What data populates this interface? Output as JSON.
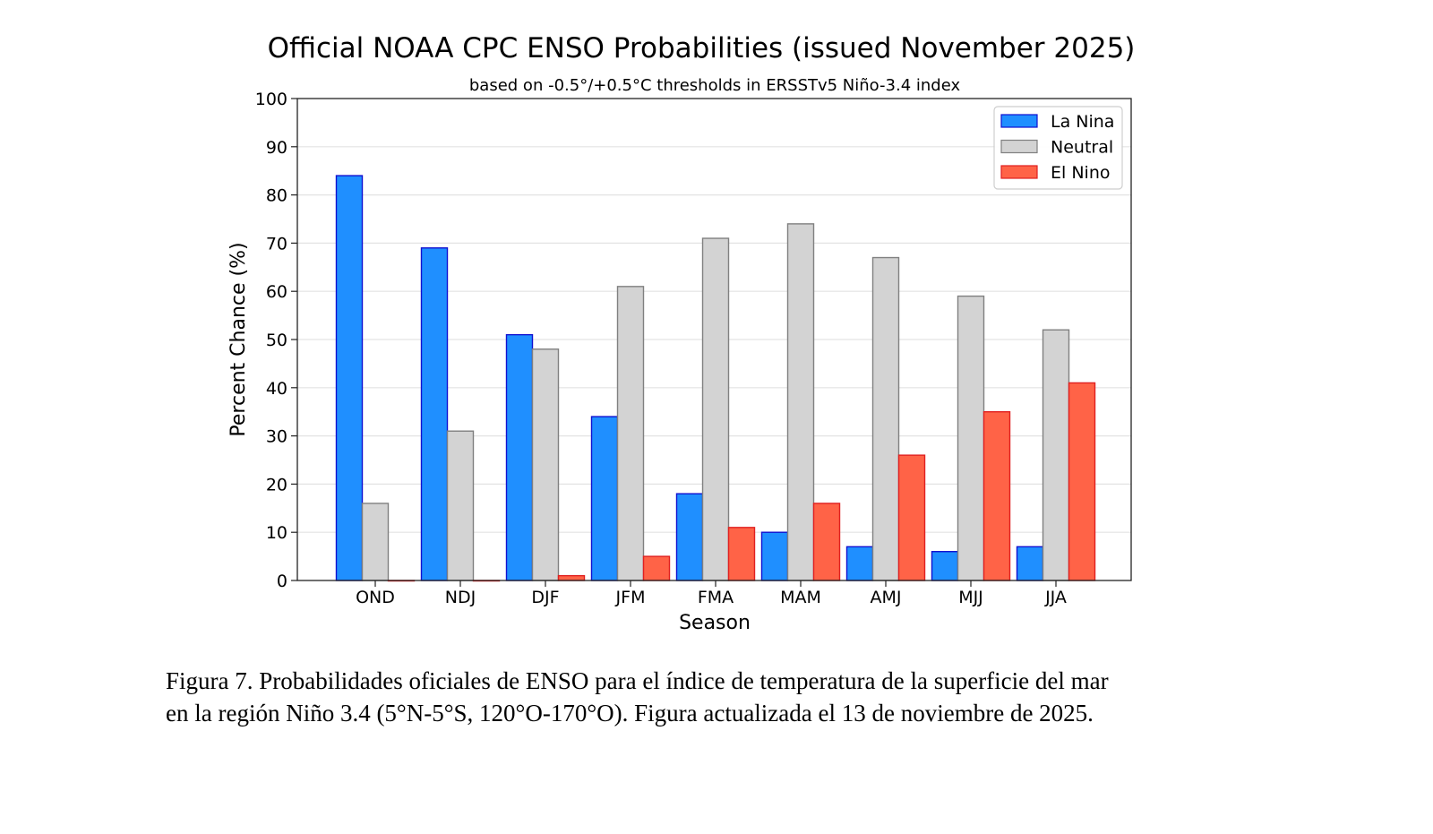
{
  "chart_data": {
    "type": "bar",
    "title": "Official NOAA CPC ENSO Probabilities (issued November 2025)",
    "subtitle": "based on -0.5°/+0.5°C thresholds in ERSSTv5 Niño-3.4 index",
    "xlabel": "Season",
    "ylabel": "Percent Chance (%)",
    "ylim": [
      0,
      100
    ],
    "yticks": [
      0,
      10,
      20,
      30,
      40,
      50,
      60,
      70,
      80,
      90,
      100
    ],
    "grid": true,
    "legend_position": "top-right",
    "categories": [
      "OND",
      "NDJ",
      "DJF",
      "JFM",
      "FMA",
      "MAM",
      "AMJ",
      "MJJ",
      "JJA"
    ],
    "series": [
      {
        "name": "La Nina",
        "color": "#1f8fff",
        "edge": "#1010d0",
        "values": [
          84,
          69,
          51,
          34,
          18,
          10,
          7,
          6,
          7
        ]
      },
      {
        "name": "Neutral",
        "color": "#d3d3d3",
        "edge": "#808080",
        "values": [
          16,
          31,
          48,
          61,
          71,
          74,
          67,
          59,
          52
        ]
      },
      {
        "name": "El Nino",
        "color": "#ff6347",
        "edge": "#e02020",
        "values": [
          0,
          0,
          1,
          5,
          11,
          16,
          26,
          35,
          41
        ]
      }
    ]
  },
  "caption": {
    "line1": "Figura 7. Probabilidades oficiales de ENSO para el índice de temperatura de la superficie del mar",
    "line2": "en la región Niño 3.4 (5°N-5°S, 120°O-170°O). Figura actualizada el 13 de noviembre de 2025."
  }
}
